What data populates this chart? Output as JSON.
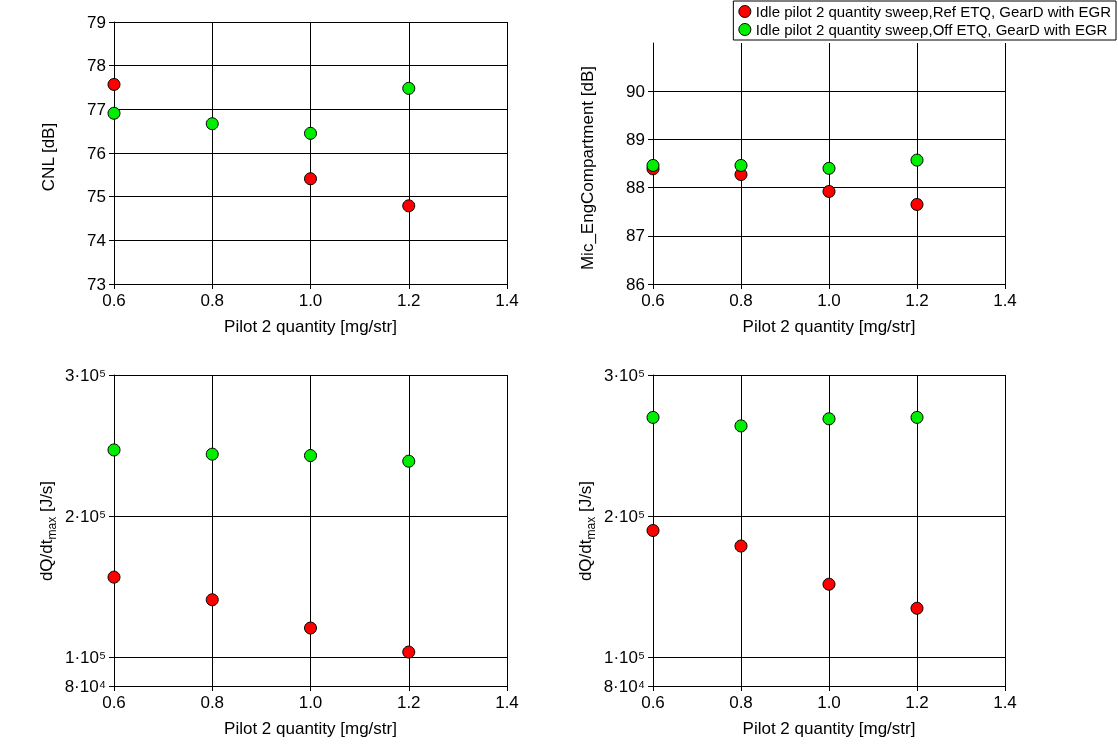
{
  "chart_data": [
    {
      "type": "scatter",
      "xlabel": "Pilot 2 quantity [mg/str]",
      "ylabel": "CNL [dB]",
      "x": [
        0.6,
        0.8,
        1.0,
        1.2
      ],
      "xlim": [
        0.6,
        1.4
      ],
      "xticks": [
        {
          "value": 0.6,
          "label": "0.6"
        },
        {
          "value": 0.8,
          "label": "0.8"
        },
        {
          "value": 1.0,
          "label": "1.0"
        },
        {
          "value": 1.2,
          "label": "1.2"
        },
        {
          "value": 1.4,
          "label": "1.4"
        }
      ],
      "ylim": [
        73,
        79
      ],
      "yticks": [
        73,
        74,
        75,
        76,
        77,
        78,
        79
      ],
      "grid": true,
      "legend": false,
      "marker": "circle",
      "series": [
        {
          "color": "#ff0000",
          "values": [
            77.57,
            null,
            75.41,
            74.79
          ]
        },
        {
          "color": "#00ee00",
          "values": [
            76.91,
            76.67,
            76.45,
            77.48
          ]
        }
      ]
    },
    {
      "type": "scatter",
      "xlabel": "Pilot 2 quantity [mg/str]",
      "ylabel": "Mic_EngCompartment [dB]",
      "x": [
        0.6,
        0.8,
        1.0,
        1.2
      ],
      "xlim": [
        0.6,
        1.4
      ],
      "xticks": [
        {
          "value": 0.6,
          "label": "0.6"
        },
        {
          "value": 0.8,
          "label": "0.8"
        },
        {
          "value": 1.0,
          "label": "1.0"
        },
        {
          "value": 1.2,
          "label": "1.2"
        },
        {
          "value": 1.4,
          "label": "1.4"
        }
      ],
      "ylim": [
        86,
        91
      ],
      "yticks": [
        86,
        87,
        88,
        89,
        90
      ],
      "grid": true,
      "legend": "top right",
      "marker": "circle",
      "series": [
        {
          "name": "Idle pilot 2 quantity sweep,Ref ETQ, GearD with EGR",
          "color": "#ff0000",
          "values": [
            88.39,
            88.27,
            87.92,
            87.65
          ]
        },
        {
          "name": "Idle pilot 2 quantity sweep,Off ETQ, GearD with EGR",
          "color": "#00ee00",
          "values": [
            88.46,
            88.46,
            88.4,
            88.57
          ]
        }
      ]
    },
    {
      "type": "scatter",
      "xlabel": "Pilot 2 quantity [mg/str]",
      "ylabel": "dQ/dt$_{max}$ [J/s]",
      "x": [
        0.6,
        0.8,
        1.0,
        1.2
      ],
      "xlim": [
        0.6,
        1.4
      ],
      "xticks": [
        {
          "value": 0.6,
          "label": "0.6"
        },
        {
          "value": 0.8,
          "label": "0.8"
        },
        {
          "value": 1.0,
          "label": "1.0"
        },
        {
          "value": 1.2,
          "label": "1.2"
        },
        {
          "value": 1.4,
          "label": "1.4"
        }
      ],
      "ylim": [
        80000,
        300000
      ],
      "yticks": [
        {
          "value": 80000,
          "label": "8·10⁴"
        },
        {
          "value": 100000,
          "label": "1·10⁵"
        },
        {
          "value": 200000,
          "label": "2·10⁵"
        },
        {
          "value": 300000,
          "label": "3·10⁵"
        }
      ],
      "grid": true,
      "legend": false,
      "marker": "circle",
      "series": [
        {
          "color": "#ff0000",
          "values": [
            157000,
            141000,
            121000,
            104000
          ]
        },
        {
          "color": "#00ee00",
          "values": [
            247000,
            244000,
            243000,
            239000
          ]
        }
      ]
    },
    {
      "type": "scatter",
      "xlabel": "Pilot 2 quantity [mg/str]",
      "ylabel": "dQ/dt$_{max}$ [J/s]",
      "x": [
        0.6,
        0.8,
        1.0,
        1.2
      ],
      "xlim": [
        0.6,
        1.4
      ],
      "xticks": [
        {
          "value": 0.6,
          "label": "0.6"
        },
        {
          "value": 0.8,
          "label": "0.8"
        },
        {
          "value": 1.0,
          "label": "1.0"
        },
        {
          "value": 1.2,
          "label": "1.2"
        },
        {
          "value": 1.4,
          "label": "1.4"
        }
      ],
      "ylim": [
        80000,
        300000
      ],
      "yticks": [
        {
          "value": 80000,
          "label": "8·10⁴"
        },
        {
          "value": 100000,
          "label": "1·10⁵"
        },
        {
          "value": 200000,
          "label": "2·10⁵"
        },
        {
          "value": 300000,
          "label": "3·10⁵"
        }
      ],
      "grid": true,
      "legend": false,
      "marker": "circle",
      "series": [
        {
          "color": "#ff0000",
          "values": [
            190000,
            179000,
            152000,
            135000
          ]
        },
        {
          "color": "#00ee00",
          "values": [
            270000,
            264000,
            269000,
            270000
          ]
        }
      ]
    }
  ]
}
